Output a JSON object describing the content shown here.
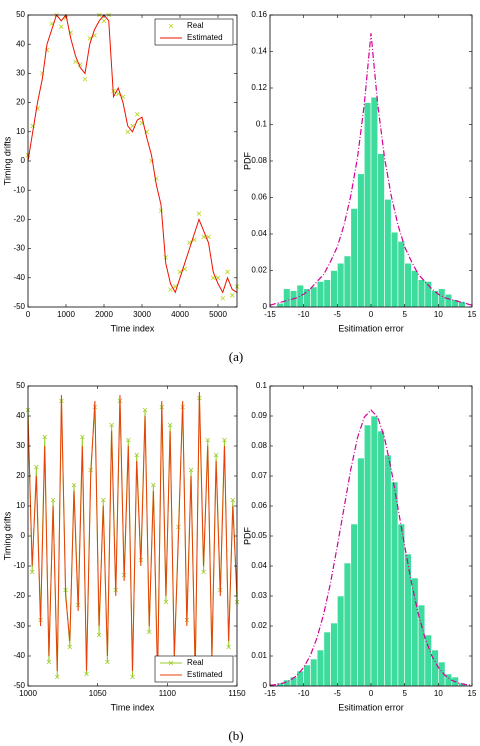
{
  "captions": [
    "(a)",
    "(b)"
  ],
  "chart_data": [
    {
      "type": "line",
      "xlabel": "Time index",
      "ylabel": "Timing drifts",
      "xlim": [
        0,
        5500
      ],
      "ylim": [
        -50,
        50
      ],
      "xticks": [
        0,
        1000,
        2000,
        3000,
        4000,
        5000
      ],
      "yticks": [
        -50,
        -40,
        -30,
        -20,
        -10,
        0,
        10,
        20,
        30,
        40,
        50
      ],
      "legend": "upper right",
      "x": [
        0,
        125,
        250,
        375,
        500,
        625,
        750,
        875,
        1000,
        1125,
        1250,
        1375,
        1500,
        1625,
        1750,
        1875,
        2000,
        2125,
        2250,
        2375,
        2500,
        2625,
        2750,
        2875,
        3000,
        3125,
        3250,
        3375,
        3500,
        3625,
        3750,
        3875,
        4000,
        4125,
        4250,
        4375,
        4500,
        4625,
        4750,
        4875,
        5000,
        5125,
        5250,
        5375,
        5500
      ],
      "series": [
        {
          "name": "Real",
          "color": "#b5d61e",
          "marker": "x",
          "line": false,
          "values": [
            2,
            12,
            18,
            30,
            38,
            47,
            50,
            46,
            49,
            44,
            34,
            33,
            28,
            42,
            43,
            50,
            48,
            50,
            24,
            23,
            22,
            10,
            12,
            16,
            13,
            10,
            0,
            -6,
            -17,
            -33,
            -44,
            -43,
            -38,
            -37,
            -28,
            -27,
            -18,
            -26,
            -26,
            -40,
            -40,
            -47,
            -38,
            -46,
            -43
          ]
        },
        {
          "name": "Estimated",
          "color": "#ee1100",
          "marker": null,
          "line": true,
          "values": [
            0,
            10,
            20,
            28,
            40,
            45,
            50,
            48,
            50,
            42,
            36,
            32,
            30,
            40,
            45,
            48,
            50,
            48,
            22,
            25,
            20,
            12,
            10,
            14,
            15,
            8,
            2,
            -8,
            -15,
            -35,
            -42,
            -45,
            -40,
            -35,
            -30,
            -25,
            -20,
            -24,
            -28,
            -38,
            -42,
            -45,
            -40,
            -44,
            -45
          ]
        }
      ]
    },
    {
      "type": "histogram",
      "xlabel": "Esitimation error",
      "ylabel": "PDF",
      "xlim": [
        -15,
        15
      ],
      "ylim": [
        0,
        0.16
      ],
      "xticks": [
        -15,
        -10,
        -5,
        0,
        5,
        10,
        15
      ],
      "yticks": [
        0,
        0.02,
        0.04,
        0.06,
        0.08,
        0.1,
        0.12,
        0.14,
        0.16
      ],
      "color": "#3ddc9c",
      "bins": [
        -14,
        -13,
        -12,
        -11,
        -10,
        -9,
        -8,
        -7,
        -6,
        -5,
        -4,
        -3,
        -2,
        -1,
        0,
        1,
        2,
        3,
        4,
        5,
        6,
        7,
        8,
        9,
        10,
        11,
        12,
        13,
        14
      ],
      "values": [
        0.002,
        0.01,
        0.009,
        0.012,
        0.01,
        0.011,
        0.014,
        0.015,
        0.02,
        0.024,
        0.028,
        0.054,
        0.073,
        0.112,
        0.115,
        0.084,
        0.059,
        0.041,
        0.036,
        0.024,
        0.02,
        0.015,
        0.014,
        0.009,
        0.01,
        0.007,
        0.004,
        0.003
      ],
      "curve": {
        "color": "#d4009a",
        "x": [
          -15,
          -14,
          -13,
          -12,
          -11,
          -10,
          -9,
          -8,
          -7,
          -6,
          -5,
          -4,
          -3,
          -2,
          -1,
          0,
          1,
          2,
          3,
          4,
          5,
          6,
          7,
          8,
          9,
          10,
          11,
          12,
          13,
          14,
          15
        ],
        "values": [
          0.001,
          0.002,
          0.003,
          0.004,
          0.005,
          0.007,
          0.01,
          0.014,
          0.018,
          0.025,
          0.033,
          0.045,
          0.061,
          0.082,
          0.111,
          0.15,
          0.111,
          0.082,
          0.061,
          0.045,
          0.033,
          0.025,
          0.018,
          0.014,
          0.01,
          0.007,
          0.005,
          0.004,
          0.003,
          0.002,
          0.001
        ]
      }
    },
    {
      "type": "line",
      "xlabel": "Time index",
      "ylabel": "Timing drifts",
      "xlim": [
        1000,
        1150
      ],
      "ylim": [
        -50,
        50
      ],
      "xticks": [
        1000,
        1050,
        1100,
        1150
      ],
      "yticks": [
        -50,
        -40,
        -30,
        -20,
        -10,
        0,
        10,
        20,
        30,
        40,
        50
      ],
      "legend": "lower right",
      "x": [
        1000,
        1003,
        1006,
        1009,
        1012,
        1015,
        1018,
        1021,
        1024,
        1027,
        1030,
        1033,
        1036,
        1039,
        1042,
        1045,
        1048,
        1051,
        1054,
        1057,
        1060,
        1063,
        1066,
        1069,
        1072,
        1075,
        1078,
        1081,
        1084,
        1087,
        1090,
        1093,
        1096,
        1099,
        1102,
        1105,
        1108,
        1111,
        1114,
        1117,
        1120,
        1123,
        1126,
        1129,
        1132,
        1135,
        1138,
        1141,
        1144,
        1147,
        1150
      ],
      "series": [
        {
          "name": "Real",
          "color": "#9ccc2a",
          "marker": "x",
          "line": true,
          "values": [
            42,
            -12,
            23,
            -28,
            33,
            -42,
            12,
            -47,
            45,
            -18,
            -37,
            17,
            -23,
            33,
            -46,
            22,
            43,
            -33,
            12,
            -42,
            37,
            -18,
            45,
            -13,
            32,
            -47,
            27,
            -8,
            42,
            -32,
            17,
            -46,
            43,
            -22,
            37,
            -42,
            3,
            43,
            -28,
            22,
            -47,
            46,
            -12,
            32,
            -42,
            27,
            -18,
            32,
            -37,
            12,
            -22
          ]
        },
        {
          "name": "Estimated",
          "color": "#e8400a",
          "marker": null,
          "line": true,
          "values": [
            40,
            -10,
            20,
            -30,
            30,
            -40,
            10,
            -45,
            47,
            -20,
            -35,
            15,
            -25,
            30,
            -45,
            20,
            45,
            -30,
            10,
            -40,
            35,
            -20,
            47,
            -15,
            30,
            -45,
            25,
            -10,
            40,
            -30,
            15,
            -48,
            45,
            -20,
            35,
            -40,
            0,
            45,
            -30,
            20,
            -45,
            48,
            -10,
            30,
            -40,
            25,
            -20,
            30,
            -35,
            10,
            -20
          ]
        }
      ]
    },
    {
      "type": "histogram",
      "xlabel": "Esitimation error",
      "ylabel": "PDF",
      "xlim": [
        -15,
        15
      ],
      "ylim": [
        0,
        0.1
      ],
      "xticks": [
        -15,
        -10,
        -5,
        0,
        5,
        10,
        15
      ],
      "yticks": [
        0,
        0.01,
        0.02,
        0.03,
        0.04,
        0.05,
        0.06,
        0.07,
        0.08,
        0.09,
        0.1
      ],
      "color": "#3ddc9c",
      "bins": [
        -14,
        -13,
        -12,
        -11,
        -10,
        -9,
        -8,
        -7,
        -6,
        -5,
        -4,
        -3,
        -2,
        -1,
        0,
        1,
        2,
        3,
        4,
        5,
        6,
        7,
        8,
        9,
        10,
        11,
        12,
        13,
        14
      ],
      "values": [
        0.001,
        0.002,
        0.003,
        0.005,
        0.007,
        0.009,
        0.012,
        0.018,
        0.021,
        0.03,
        0.041,
        0.054,
        0.076,
        0.087,
        0.09,
        0.085,
        0.077,
        0.068,
        0.054,
        0.044,
        0.036,
        0.027,
        0.017,
        0.012,
        0.008,
        0.004,
        0.003,
        0.001
      ],
      "curve": {
        "color": "#d4009a",
        "x": [
          -15,
          -14,
          -13,
          -12,
          -11,
          -10,
          -9,
          -8,
          -7,
          -6,
          -5,
          -4,
          -3,
          -2,
          -1,
          0,
          1,
          2,
          3,
          4,
          5,
          6,
          7,
          8,
          9,
          10,
          11,
          12,
          13,
          14,
          15
        ],
        "values": [
          0.0002,
          0.0005,
          0.001,
          0.0019,
          0.0035,
          0.0062,
          0.0102,
          0.0162,
          0.0242,
          0.0345,
          0.0467,
          0.0594,
          0.0722,
          0.0828,
          0.0896,
          0.092,
          0.0896,
          0.0828,
          0.0722,
          0.0594,
          0.0467,
          0.0345,
          0.0242,
          0.0162,
          0.0102,
          0.0062,
          0.0035,
          0.0019,
          0.001,
          0.0005,
          0.0002
        ]
      }
    }
  ]
}
